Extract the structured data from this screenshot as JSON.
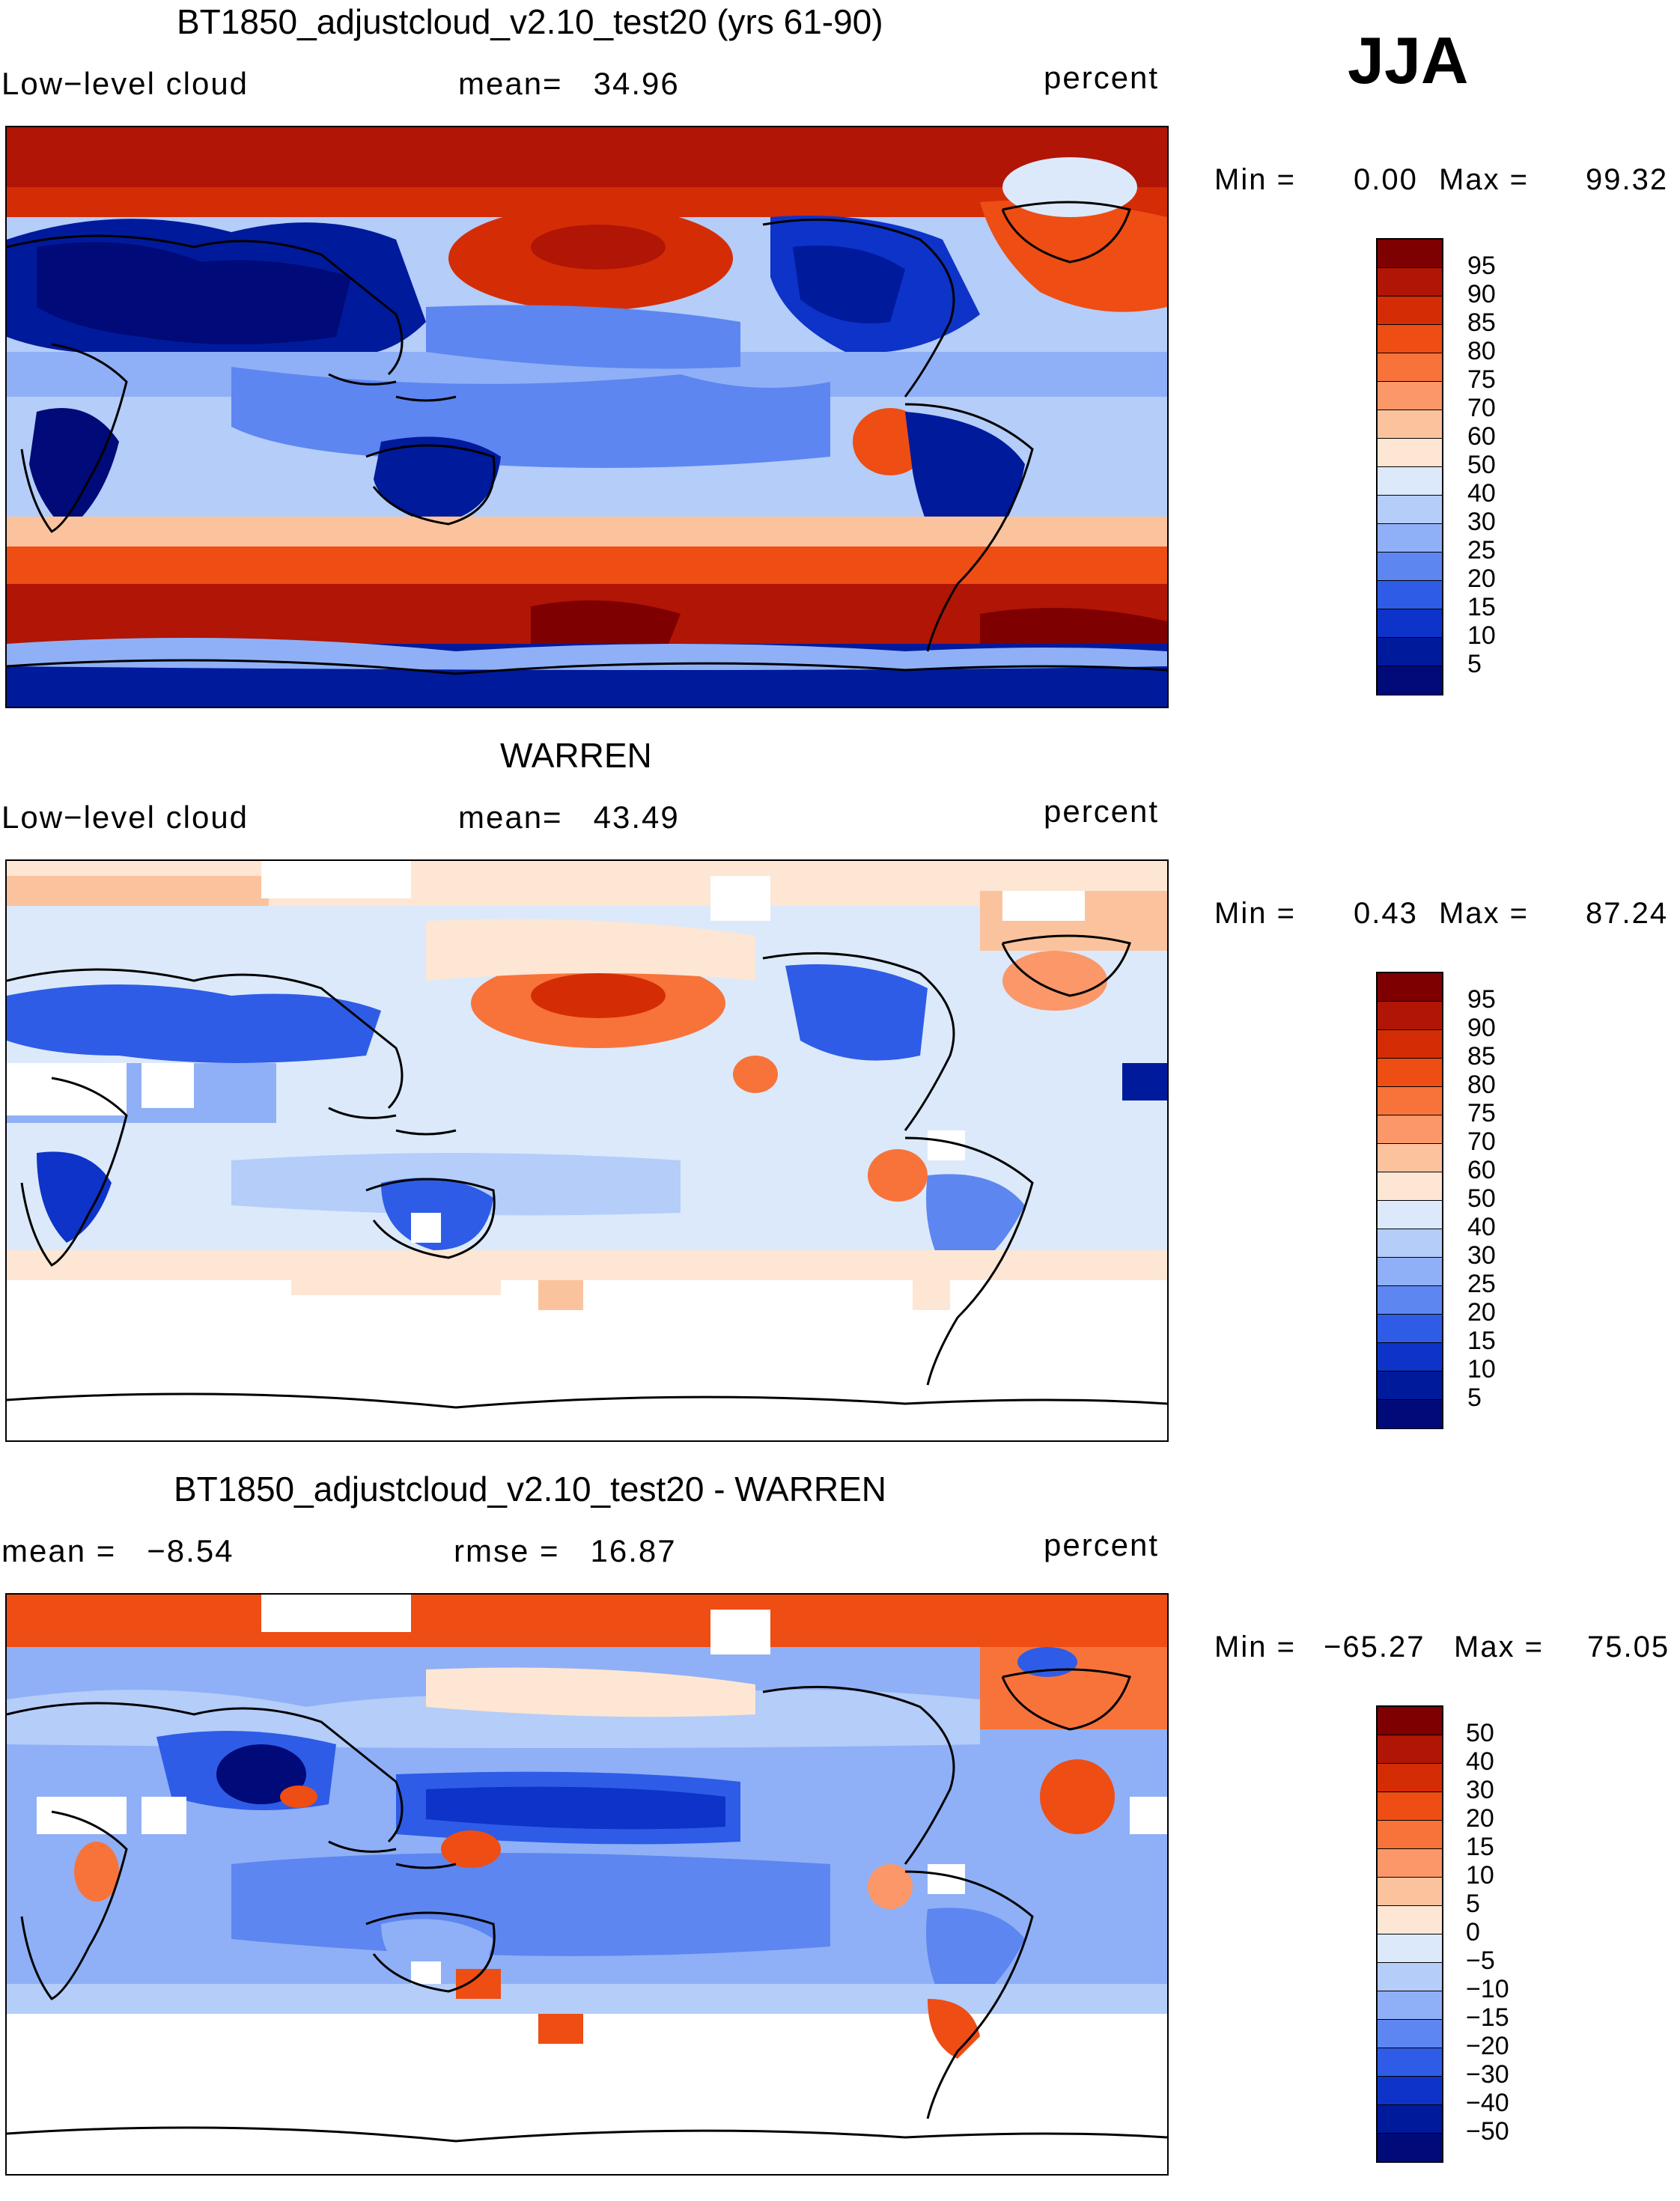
{
  "season_label": "JJA",
  "panels": [
    {
      "title": "BT1850_adjustcloud_v2.10_test20 (yrs 61-90)",
      "left_label": "Low−level cloud",
      "center_label": "mean=   34.96",
      "units": "percent",
      "min_label": "Min =",
      "min_value": "0.00",
      "max_label": "Max =",
      "max_value": "99.32",
      "colorbar_ticks": [
        "95",
        "90",
        "85",
        "80",
        "75",
        "70",
        "60",
        "50",
        "40",
        "30",
        "25",
        "20",
        "15",
        "10",
        "5"
      ],
      "colorbar_colors": [
        "#7f0000",
        "#b01505",
        "#d42d06",
        "#ee4d14",
        "#f8733a",
        "#fb9768",
        "#fbc39d",
        "#fde6d3",
        "#dbe9fb",
        "#b4cdf9",
        "#8fb0f6",
        "#5d86f0",
        "#2e5ce6",
        "#0d33c8",
        "#001a9c",
        "#000a78"
      ]
    },
    {
      "title": "WARREN",
      "left_label": "Low−level cloud",
      "center_label": "mean=   43.49",
      "units": "percent",
      "min_label": "Min =",
      "min_value": "0.43",
      "max_label": "Max =",
      "max_value": "87.24",
      "colorbar_ticks": [
        "95",
        "90",
        "85",
        "80",
        "75",
        "70",
        "60",
        "50",
        "40",
        "30",
        "25",
        "20",
        "15",
        "10",
        "5"
      ],
      "colorbar_colors": [
        "#7f0000",
        "#b01505",
        "#d42d06",
        "#ee4d14",
        "#f8733a",
        "#fb9768",
        "#fbc39d",
        "#fde6d3",
        "#dbe9fb",
        "#b4cdf9",
        "#8fb0f6",
        "#5d86f0",
        "#2e5ce6",
        "#0d33c8",
        "#001a9c",
        "#000a78"
      ]
    },
    {
      "title": "BT1850_adjustcloud_v2.10_test20 - WARREN",
      "left_label": "mean =   −8.54",
      "center_label": "rmse =   16.87",
      "units": "percent",
      "min_label": "Min =",
      "min_value": "−65.27",
      "max_label": "Max =",
      "max_value": "75.05",
      "colorbar_ticks": [
        "50",
        "40",
        "30",
        "20",
        "15",
        "10",
        "5",
        "0",
        "−5",
        "−10",
        "−15",
        "−20",
        "−30",
        "−40",
        "−50"
      ],
      "colorbar_colors": [
        "#7f0000",
        "#b01505",
        "#d42d06",
        "#ee4d14",
        "#f8733a",
        "#fb9768",
        "#fbc39d",
        "#fde6d3",
        "#dbe9fb",
        "#b4cdf9",
        "#8fb0f6",
        "#5d86f0",
        "#2e5ce6",
        "#0d33c8",
        "#001a9c",
        "#000a78"
      ]
    }
  ]
}
